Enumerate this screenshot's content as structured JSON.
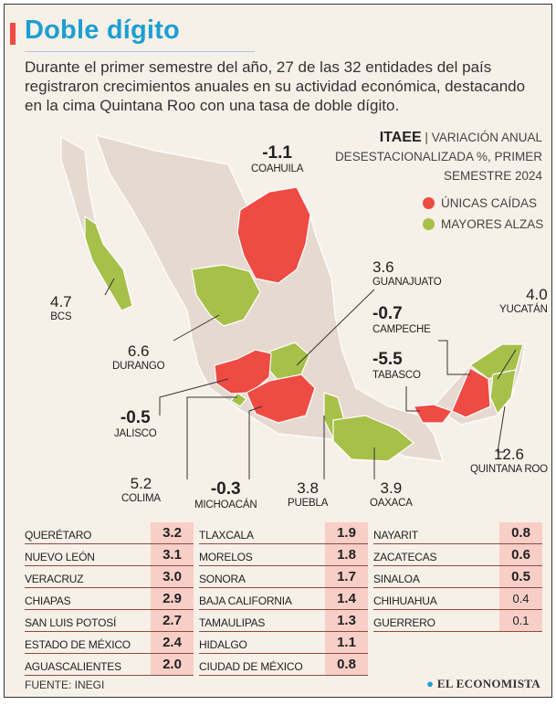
{
  "title": "Doble dígito",
  "intro": "Durante el primer semestre del año, 27 de las 32 entidades del país registraron crecimientos anuales en su actividad económica, destacando en la cima Quintana Roo con una tasa de doble dígito.",
  "indicator": {
    "name": "ITAEE",
    "separator": "|",
    "desc1": "VARIACIÓN ANUAL",
    "desc2": "DESESTACIONALIZADA %, PRIMER",
    "desc3": "SEMESTRE 2024"
  },
  "legend": [
    {
      "label": "ÚNICAS CAÍDAS",
      "color": "#ee4b43"
    },
    {
      "label": "MAYORES ALZAS",
      "color": "#a7c04a"
    }
  ],
  "colors": {
    "decline": "#ee4b43",
    "rise": "#a7c04a",
    "base": "#e6d9d0",
    "title": "#1b9fd2"
  },
  "map_labels": [
    {
      "state": "COAHUILA",
      "value": "-1.1"
    },
    {
      "state": "GUANAJUATO",
      "value": "3.6"
    },
    {
      "state": "YUCATÁN",
      "value": "4.0"
    },
    {
      "state": "BCS",
      "value": "4.7"
    },
    {
      "state": "CAMPECHE",
      "value": "-0.7"
    },
    {
      "state": "DURANGO",
      "value": "6.6"
    },
    {
      "state": "TABASCO",
      "value": "-5.5"
    },
    {
      "state": "JALISCO",
      "value": "-0.5"
    },
    {
      "state": "QUINTANA ROO",
      "value": "12.6"
    },
    {
      "state": "COLIMA",
      "value": "5.2"
    },
    {
      "state": "MICHOACÁN",
      "value": "-0.3"
    },
    {
      "state": "PUEBLA",
      "value": "3.8"
    },
    {
      "state": "OAXACA",
      "value": "3.9"
    }
  ],
  "table": [
    [
      {
        "state": "QUERÉTARO",
        "value": "3.2"
      },
      {
        "state": "NUEVO LEÓN",
        "value": "3.1"
      },
      {
        "state": "VERACRUZ",
        "value": "3.0"
      },
      {
        "state": "CHIAPAS",
        "value": "2.9"
      },
      {
        "state": "SAN LUIS POTOSÍ",
        "value": "2.7"
      },
      {
        "state": "ESTADO DE MÉXICO",
        "value": "2.4"
      },
      {
        "state": "AGUASCALIENTES",
        "value": "2.0"
      }
    ],
    [
      {
        "state": "TLAXCALA",
        "value": "1.9"
      },
      {
        "state": "MORELOS",
        "value": "1.8"
      },
      {
        "state": "SONORA",
        "value": "1.7"
      },
      {
        "state": "BAJA CALIFORNIA",
        "value": "1.4"
      },
      {
        "state": "TAMAULIPAS",
        "value": "1.3"
      },
      {
        "state": "HIDALGO",
        "value": "1.1"
      },
      {
        "state": "CIUDAD DE MÉXICO",
        "value": "0.8"
      }
    ],
    [
      {
        "state": "NAYARIT",
        "value": "0.8"
      },
      {
        "state": "ZACATECAS",
        "value": "0.6"
      },
      {
        "state": "SINALOA",
        "value": "0.5"
      },
      {
        "state": "CHIHUAHUA",
        "value": "0.4"
      },
      {
        "state": "GUERRERO",
        "value": "0.1"
      }
    ]
  ],
  "source": "FUENTE: INEGI",
  "brand": "EL ECONOMISTA"
}
